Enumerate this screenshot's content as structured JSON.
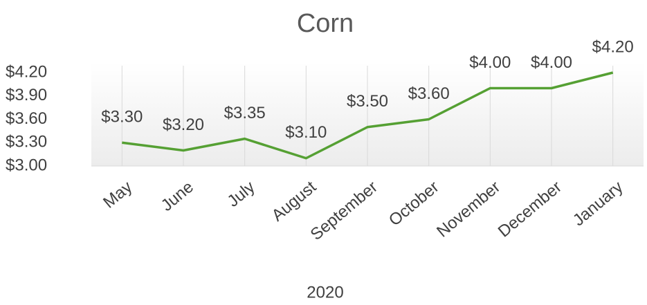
{
  "chart_data": {
    "type": "line",
    "title": "Corn",
    "x_label": "2020",
    "categories": [
      "May",
      "June",
      "July",
      "August",
      "September",
      "October",
      "November",
      "December",
      "January"
    ],
    "series": [
      {
        "name": "Corn",
        "color": "#55a033",
        "values": [
          3.3,
          3.2,
          3.35,
          3.1,
          3.5,
          3.6,
          4.0,
          4.0,
          4.2
        ],
        "value_labels": [
          "$3.30",
          "$3.20",
          "$3.35",
          "$3.10",
          "$3.50",
          "$3.60",
          "$4.00",
          "$4.00",
          "$4.20"
        ]
      }
    ],
    "ylim": [
      3.0,
      4.2
    ],
    "yticks": [
      {
        "value": 3.0,
        "label": "$3.00"
      },
      {
        "value": 3.3,
        "label": "$3.30"
      },
      {
        "value": 3.6,
        "label": "$3.60"
      },
      {
        "value": 3.9,
        "label": "$3.90"
      },
      {
        "value": 4.2,
        "label": "$4.20"
      }
    ],
    "grid": true
  }
}
